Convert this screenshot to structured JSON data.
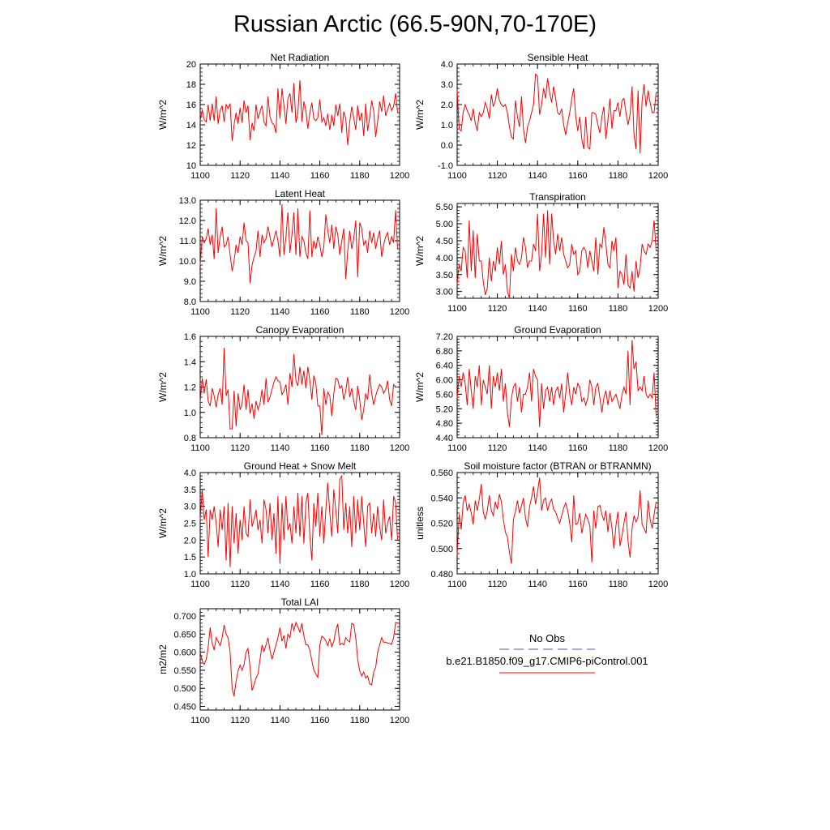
{
  "title": "Russian Arctic (66.5-90N,70-170E)",
  "colors": {
    "model_line": "#ff0000",
    "obs_line": "#5555aa",
    "axis": "#000000"
  },
  "legend": {
    "obs_label": "No Obs",
    "model_label": "b.e21.B1850.f09_g17.CMIP6-piControl.001"
  },
  "chart_data": [
    {
      "type": "line",
      "title": "Net Radiation",
      "ylabel": "W/m^2",
      "xlim": [
        1100,
        1200
      ],
      "xticks": [
        1100,
        1120,
        1140,
        1160,
        1180,
        1200
      ],
      "xtick_labels": [
        "1100",
        "1120",
        "1140",
        "1160",
        "1180",
        "1200"
      ],
      "ylim": [
        10,
        20
      ],
      "yticks": [
        10,
        12,
        14,
        16,
        18,
        20
      ],
      "ytick_labels": [
        "10",
        "12",
        "14",
        "16",
        "18",
        "20"
      ],
      "x_start": 1100,
      "values": [
        14.4,
        15.5,
        14.5,
        14.3,
        16.0,
        14.4,
        16.1,
        14.4,
        16.8,
        14.1,
        15.4,
        15.9,
        14.3,
        16.0,
        15.6,
        16.1,
        12.4,
        14.0,
        15.2,
        14.1,
        15.7,
        14.2,
        16.4,
        15.2,
        15.9,
        12.5,
        14.2,
        13.4,
        16.0,
        14.6,
        15.3,
        15.9,
        14.3,
        13.9,
        16.8,
        14.8,
        14.2,
        14.0,
        13.2,
        17.6,
        14.6,
        17.6,
        15.9,
        14.1,
        16.6,
        17.1,
        15.2,
        18.1,
        14.2,
        15.2,
        18.4,
        14.3,
        16.3,
        15.4,
        13.6,
        15.2,
        16.2,
        14.6,
        14.4,
        14.7,
        16.5,
        14.3,
        14.7,
        13.9,
        15.1,
        13.5,
        15.0,
        13.9,
        16.0,
        14.9,
        16.1,
        13.2,
        15.3,
        14.6,
        12.0,
        14.3,
        15.8,
        14.7,
        13.5,
        15.9,
        14.4,
        15.2,
        12.9,
        16.1,
        13.4,
        14.7,
        16.4,
        15.4,
        12.8,
        14.3,
        16.3,
        15.3,
        16.9,
        14.9,
        15.5,
        16.1,
        15.4,
        15.8,
        17.1,
        15.2
      ]
    },
    {
      "type": "line",
      "title": "Sensible Heat",
      "ylabel": "W/m^2",
      "xlim": [
        1100,
        1200
      ],
      "xticks": [
        1100,
        1120,
        1140,
        1160,
        1180,
        1200
      ],
      "xtick_labels": [
        "1100",
        "1120",
        "1140",
        "1160",
        "1180",
        "1200"
      ],
      "ylim": [
        -1.0,
        4.0
      ],
      "yticks": [
        -1.0,
        0.0,
        1.0,
        2.0,
        3.0,
        4.0
      ],
      "ytick_labels": [
        "-1.0",
        "0.0",
        "1.0",
        "2.0",
        "3.0",
        "4.0"
      ],
      "x_start": 1100,
      "values": [
        2.7,
        0.8,
        0.7,
        1.6,
        2.0,
        1.7,
        1.5,
        1.2,
        1.8,
        1.1,
        0.7,
        1.6,
        1.4,
        1.6,
        2.1,
        1.8,
        1.3,
        2.5,
        1.9,
        2.2,
        2.8,
        2.2,
        2.0,
        1.9,
        2.0,
        1.6,
        0.9,
        0.4,
        0.3,
        2.2,
        1.4,
        0.9,
        2.4,
        0.8,
        0.1,
        0.9,
        1.2,
        1.6,
        2.0,
        3.5,
        3.4,
        1.5,
        2.0,
        2.8,
        2.3,
        3.3,
        2.6,
        2.1,
        2.9,
        2.3,
        1.6,
        1.5,
        1.8,
        1.0,
        0.5,
        1.1,
        1.6,
        2.3,
        2.8,
        1.4,
        0.7,
        1.4,
        0.3,
        -0.2,
        1.4,
        -0.1,
        -0.2,
        1.6,
        1.6,
        1.5,
        1.0,
        0.6,
        1.4,
        1.9,
        0.3,
        1.2,
        2.3,
        0.8,
        1.7,
        1.7,
        2.1,
        1.4,
        2.2,
        2.3,
        1.6,
        1.0,
        1.5,
        2.9,
        0.5,
        -0.2,
        2.7,
        -0.4,
        2.2,
        3.0,
        1.9,
        2.7,
        2.1,
        1.6,
        1.6,
        2.6
      ]
    },
    {
      "type": "line",
      "title": "Latent Heat",
      "ylabel": "W/m^2",
      "xlim": [
        1100,
        1200
      ],
      "xticks": [
        1100,
        1120,
        1140,
        1160,
        1180,
        1200
      ],
      "xtick_labels": [
        "1100",
        "1120",
        "1140",
        "1160",
        "1180",
        "1200"
      ],
      "ylim": [
        8.0,
        13.0
      ],
      "yticks": [
        8.0,
        9.0,
        10.0,
        11.0,
        12.0,
        13.0
      ],
      "ytick_labels": [
        "8.0",
        "9.0",
        "10.0",
        "11.0",
        "12.0",
        "13.0"
      ],
      "x_start": 1100,
      "values": [
        9.8,
        11.2,
        10.9,
        11.1,
        11.6,
        10.8,
        11.3,
        10.1,
        12.6,
        10.4,
        11.2,
        11.7,
        10.7,
        10.8,
        11.2,
        10.3,
        9.5,
        10.0,
        10.8,
        10.4,
        11.2,
        10.8,
        11.9,
        11.0,
        10.9,
        8.9,
        9.8,
        10.2,
        10.5,
        11.5,
        10.2,
        11.3,
        10.9,
        11.1,
        11.7,
        11.2,
        10.7,
        11.1,
        11.5,
        11.0,
        10.2,
        12.8,
        10.3,
        11.2,
        12.4,
        10.4,
        11.3,
        12.4,
        10.3,
        12.6,
        10.2,
        11.2,
        11.0,
        10.4,
        10.1,
        12.5,
        10.2,
        11.0,
        10.6,
        11.2,
        10.8,
        10.2,
        10.7,
        12.3,
        11.5,
        10.9,
        11.8,
        10.6,
        11.7,
        11.3,
        10.3,
        11.0,
        11.6,
        9.1,
        10.5,
        11.5,
        10.6,
        11.1,
        12.0,
        9.2,
        11.9,
        11.6,
        10.8,
        11.0,
        10.4,
        11.5,
        10.9,
        11.4,
        10.6,
        11.1,
        11.5,
        10.2,
        10.8,
        11.2,
        11.4,
        10.8,
        11.2,
        10.9,
        12.5,
        10.6
      ]
    },
    {
      "type": "line",
      "title": "Transpiration",
      "ylabel": "W/m^2",
      "xlim": [
        1100,
        1200
      ],
      "xticks": [
        1100,
        1120,
        1140,
        1160,
        1180,
        1200
      ],
      "xtick_labels": [
        "1100",
        "1120",
        "1140",
        "1160",
        "1180",
        "1200"
      ],
      "ylim": [
        2.8,
        5.6
      ],
      "yticks": [
        3.0,
        3.5,
        4.0,
        4.5,
        5.0,
        5.5
      ],
      "ytick_labels": [
        "3.00",
        "3.50",
        "4.00",
        "4.50",
        "5.00",
        "5.50"
      ],
      "x_start": 1100,
      "values": [
        3.2,
        3.8,
        3.6,
        4.3,
        4.2,
        3.4,
        5.1,
        3.6,
        4.8,
        3.4,
        4.7,
        3.9,
        3.9,
        3.3,
        2.9,
        3.1,
        4.0,
        3.3,
        3.9,
        3.6,
        4.3,
        3.8,
        4.5,
        3.5,
        3.8,
        3.0,
        2.8,
        4.1,
        3.6,
        4.3,
        3.9,
        3.8,
        4.0,
        4.6,
        4.3,
        3.7,
        3.9,
        3.9,
        4.4,
        4.2,
        5.3,
        3.6,
        4.1,
        5.3,
        4.0,
        5.4,
        3.8,
        5.3,
        4.5,
        4.1,
        4.7,
        4.2,
        4.6,
        4.1,
        3.9,
        3.7,
        3.8,
        4.4,
        4.1,
        4.2,
        3.5,
        3.6,
        4.2,
        4.3,
        4.2,
        3.7,
        4.2,
        3.9,
        3.6,
        4.6,
        3.5,
        4.4,
        4.3,
        4.9,
        4.4,
        3.8,
        3.7,
        4.5,
        4.2,
        4.6,
        3.1,
        3.6,
        3.5,
        3.2,
        4.1,
        3.2,
        3.1,
        3.6,
        3.0,
        3.9,
        3.4,
        3.7,
        4.4,
        4.2,
        4.1,
        4.4,
        4.3,
        4.5,
        5.1,
        4.2
      ]
    },
    {
      "type": "line",
      "title": "Canopy Evaporation",
      "ylabel": "W/m^2",
      "xlim": [
        1100,
        1200
      ],
      "xticks": [
        1100,
        1120,
        1140,
        1160,
        1180,
        1200
      ],
      "xtick_labels": [
        "1100",
        "1120",
        "1140",
        "1160",
        "1180",
        "1200"
      ],
      "ylim": [
        0.8,
        1.6
      ],
      "yticks": [
        0.8,
        1.0,
        1.2,
        1.4,
        1.6
      ],
      "ytick_labels": [
        "0.8",
        "1.0",
        "1.2",
        "1.4",
        "1.6"
      ],
      "x_start": 1100,
      "values": [
        1.08,
        1.27,
        1.15,
        1.26,
        1.09,
        1.05,
        1.19,
        1.13,
        1.04,
        1.14,
        1.19,
        1.06,
        1.51,
        1.13,
        1.18,
        0.87,
        0.87,
        1.17,
        0.89,
        1.15,
        1.02,
        1.07,
        1.22,
        1.02,
        1.18,
        0.99,
        1.07,
        0.95,
        1.09,
        1.02,
        1.07,
        1.18,
        1.06,
        1.27,
        1.08,
        1.12,
        1.18,
        1.24,
        1.28,
        1.25,
        1.24,
        1.14,
        1.17,
        1.22,
        1.06,
        1.31,
        1.2,
        1.46,
        1.25,
        1.21,
        1.36,
        1.22,
        1.33,
        1.19,
        1.36,
        1.25,
        1.1,
        1.29,
        1.23,
        1.05,
        1.05,
        0.82,
        1.19,
        1.06,
        1.16,
        1.13,
        0.97,
        1.15,
        1.27,
        1.26,
        1.19,
        1.21,
        1.1,
        1.17,
        1.28,
        1.12,
        1.19,
        1.09,
        1.02,
        1.21,
        1.1,
        0.94,
        1.02,
        1.15,
        1.1,
        1.3,
        1.15,
        1.06,
        1.13,
        1.18,
        1.22,
        1.2,
        1.15,
        1.18,
        1.25,
        1.1,
        1.05,
        1.22,
        1.2,
        1.2
      ]
    },
    {
      "type": "line",
      "title": "Ground Evaporation",
      "ylabel": "W/m^2",
      "xlim": [
        1100,
        1200
      ],
      "xticks": [
        1100,
        1120,
        1140,
        1160,
        1180,
        1200
      ],
      "xtick_labels": [
        "1100",
        "1120",
        "1140",
        "1160",
        "1180",
        "1200"
      ],
      "ylim": [
        4.4,
        7.2
      ],
      "yticks": [
        4.4,
        4.8,
        5.2,
        5.6,
        6.0,
        6.4,
        6.8,
        7.2
      ],
      "ytick_labels": [
        "4.40",
        "4.80",
        "5.20",
        "5.60",
        "6.00",
        "6.40",
        "6.80",
        "7.20"
      ],
      "x_start": 1100,
      "values": [
        5.5,
        6.1,
        5.8,
        6.2,
        5.9,
        5.3,
        6.3,
        5.7,
        5.2,
        6.1,
        5.8,
        6.4,
        5.3,
        6.0,
        5.8,
        5.6,
        6.4,
        5.2,
        6.1,
        5.8,
        6.2,
        5.7,
        6.3,
        5.4,
        5.9,
        5.1,
        4.7,
        5.5,
        5.8,
        5.9,
        5.4,
        5.8,
        5.1,
        5.6,
        5.6,
        5.8,
        6.2,
        5.4,
        6.3,
        6.1,
        6.0,
        4.7,
        5.9,
        5.2,
        5.7,
        5.8,
        5.4,
        5.8,
        5.3,
        5.7,
        5.8,
        5.5,
        5.9,
        5.1,
        5.6,
        6.2,
        5.6,
        5.3,
        5.8,
        5.6,
        5.9,
        5.8,
        5.4,
        5.5,
        5.3,
        5.5,
        6.0,
        5.8,
        5.3,
        5.8,
        5.9,
        5.5,
        5.1,
        5.5,
        5.7,
        5.3,
        5.7,
        5.4,
        5.5,
        5.6,
        5.4,
        5.2,
        5.6,
        5.8,
        5.6,
        6.8,
        5.3,
        7.1,
        6.3,
        6.5,
        5.7,
        5.8,
        5.7,
        6.1,
        5.6,
        5.5,
        5.6,
        5.5,
        6.2,
        5.0
      ]
    },
    {
      "type": "line",
      "title": "Ground Heat + Snow Melt",
      "ylabel": "W/m^2",
      "xlim": [
        1100,
        1200
      ],
      "xticks": [
        1100,
        1120,
        1140,
        1160,
        1180,
        1200
      ],
      "xtick_labels": [
        "1100",
        "1120",
        "1140",
        "1160",
        "1180",
        "1200"
      ],
      "ylim": [
        1.0,
        4.0
      ],
      "yticks": [
        1.0,
        1.5,
        2.0,
        2.5,
        3.0,
        3.5,
        4.0
      ],
      "ytick_labels": [
        "1.0",
        "1.5",
        "2.0",
        "2.5",
        "3.0",
        "3.5",
        "4.0"
      ],
      "x_start": 1100,
      "values": [
        2.6,
        3.5,
        2.6,
        2.9,
        1.5,
        2.9,
        2.6,
        3.0,
        2.5,
        1.8,
        2.9,
        2.3,
        3.0,
        1.4,
        3.1,
        1.2,
        3.0,
        1.9,
        2.8,
        1.6,
        2.6,
        2.0,
        3.0,
        2.2,
        2.1,
        3.2,
        2.4,
        2.6,
        2.9,
        2.3,
        2.6,
        1.9,
        3.2,
        2.9,
        2.2,
        3.1,
        2.0,
        2.8,
        1.6,
        3.3,
        1.3,
        3.1,
        2.0,
        3.3,
        2.3,
        2.5,
        1.9,
        3.0,
        2.2,
        3.4,
        2.1,
        3.3,
        1.9,
        3.1,
        3.4,
        2.1,
        1.4,
        3.1,
        2.4,
        3.4,
        2.1,
        3.0,
        1.9,
        2.9,
        3.7,
        2.8,
        2.1,
        3.5,
        2.9,
        2.2,
        3.8,
        3.9,
        2.3,
        3.1,
        2.2,
        3.0,
        1.8,
        3.3,
        2.2,
        3.2,
        2.3,
        3.3,
        2.5,
        1.8,
        3.0,
        3.1,
        2.2,
        2.8,
        2.1,
        3.0,
        2.4,
        2.0,
        3.2,
        2.2,
        2.5,
        2.7,
        2.0,
        3.3,
        3.1,
        2.0
      ]
    },
    {
      "type": "line",
      "title": "Soil moisture factor (BTRAN or BTRANMN)",
      "ylabel": "unitless",
      "xlim": [
        1100,
        1200
      ],
      "xticks": [
        1100,
        1120,
        1140,
        1160,
        1180,
        1200
      ],
      "xtick_labels": [
        "1100",
        "1120",
        "1140",
        "1160",
        "1180",
        "1200"
      ],
      "ylim": [
        0.48,
        0.56
      ],
      "yticks": [
        0.48,
        0.5,
        0.52,
        0.54,
        0.56
      ],
      "ytick_labels": [
        "0.480",
        "0.500",
        "0.520",
        "0.540",
        "0.560"
      ],
      "x_start": 1100,
      "values": [
        0.495,
        0.527,
        0.515,
        0.536,
        0.542,
        0.53,
        0.535,
        0.528,
        0.519,
        0.538,
        0.53,
        0.539,
        0.551,
        0.529,
        0.523,
        0.53,
        0.542,
        0.53,
        0.526,
        0.537,
        0.531,
        0.543,
        0.537,
        0.523,
        0.513,
        0.509,
        0.497,
        0.488,
        0.523,
        0.529,
        0.538,
        0.528,
        0.534,
        0.54,
        0.524,
        0.517,
        0.533,
        0.54,
        0.549,
        0.535,
        0.545,
        0.556,
        0.53,
        0.538,
        0.54,
        0.53,
        0.536,
        0.539,
        0.531,
        0.529,
        0.524,
        0.52,
        0.526,
        0.532,
        0.536,
        0.53,
        0.52,
        0.505,
        0.542,
        0.519,
        0.52,
        0.528,
        0.512,
        0.52,
        0.527,
        0.523,
        0.518,
        0.489,
        0.53,
        0.516,
        0.533,
        0.534,
        0.527,
        0.522,
        0.53,
        0.513,
        0.528,
        0.516,
        0.5,
        0.518,
        0.529,
        0.502,
        0.51,
        0.52,
        0.529,
        0.506,
        0.493,
        0.516,
        0.526,
        0.521,
        0.525,
        0.546,
        0.519,
        0.516,
        0.512,
        0.538,
        0.523,
        0.516,
        0.527,
        0.537
      ]
    },
    {
      "type": "line",
      "title": "Total LAI",
      "ylabel": "m2/m2",
      "xlim": [
        1100,
        1200
      ],
      "xticks": [
        1100,
        1120,
        1140,
        1160,
        1180,
        1200
      ],
      "xtick_labels": [
        "1100",
        "1120",
        "1140",
        "1160",
        "1180",
        "1200"
      ],
      "ylim": [
        0.44,
        0.72
      ],
      "yticks": [
        0.45,
        0.5,
        0.55,
        0.6,
        0.65,
        0.7
      ],
      "ytick_labels": [
        "0.450",
        "0.500",
        "0.550",
        "0.600",
        "0.650",
        "0.700"
      ],
      "x_start": 1100,
      "values": [
        0.6,
        0.576,
        0.566,
        0.58,
        0.612,
        0.668,
        0.625,
        0.606,
        0.64,
        0.63,
        0.618,
        0.64,
        0.675,
        0.65,
        0.64,
        0.6,
        0.5,
        0.478,
        0.52,
        0.548,
        0.564,
        0.55,
        0.566,
        0.6,
        0.61,
        0.558,
        0.494,
        0.51,
        0.529,
        0.54,
        0.58,
        0.62,
        0.602,
        0.62,
        0.64,
        0.605,
        0.58,
        0.6,
        0.62,
        0.64,
        0.668,
        0.63,
        0.646,
        0.61,
        0.65,
        0.64,
        0.68,
        0.66,
        0.682,
        0.67,
        0.655,
        0.68,
        0.645,
        0.62,
        0.62,
        0.605,
        0.575,
        0.55,
        0.54,
        0.53,
        0.62,
        0.644,
        0.64,
        0.631,
        0.618,
        0.637,
        0.615,
        0.63,
        0.66,
        0.678,
        0.62,
        0.625,
        0.62,
        0.64,
        0.632,
        0.628,
        0.68,
        0.676,
        0.64,
        0.58,
        0.548,
        0.534,
        0.545,
        0.528,
        0.534,
        0.512,
        0.51,
        0.545,
        0.558,
        0.6,
        0.62,
        0.64,
        0.627,
        0.628,
        0.625,
        0.624,
        0.622,
        0.64,
        0.682,
        0.68
      ]
    }
  ]
}
